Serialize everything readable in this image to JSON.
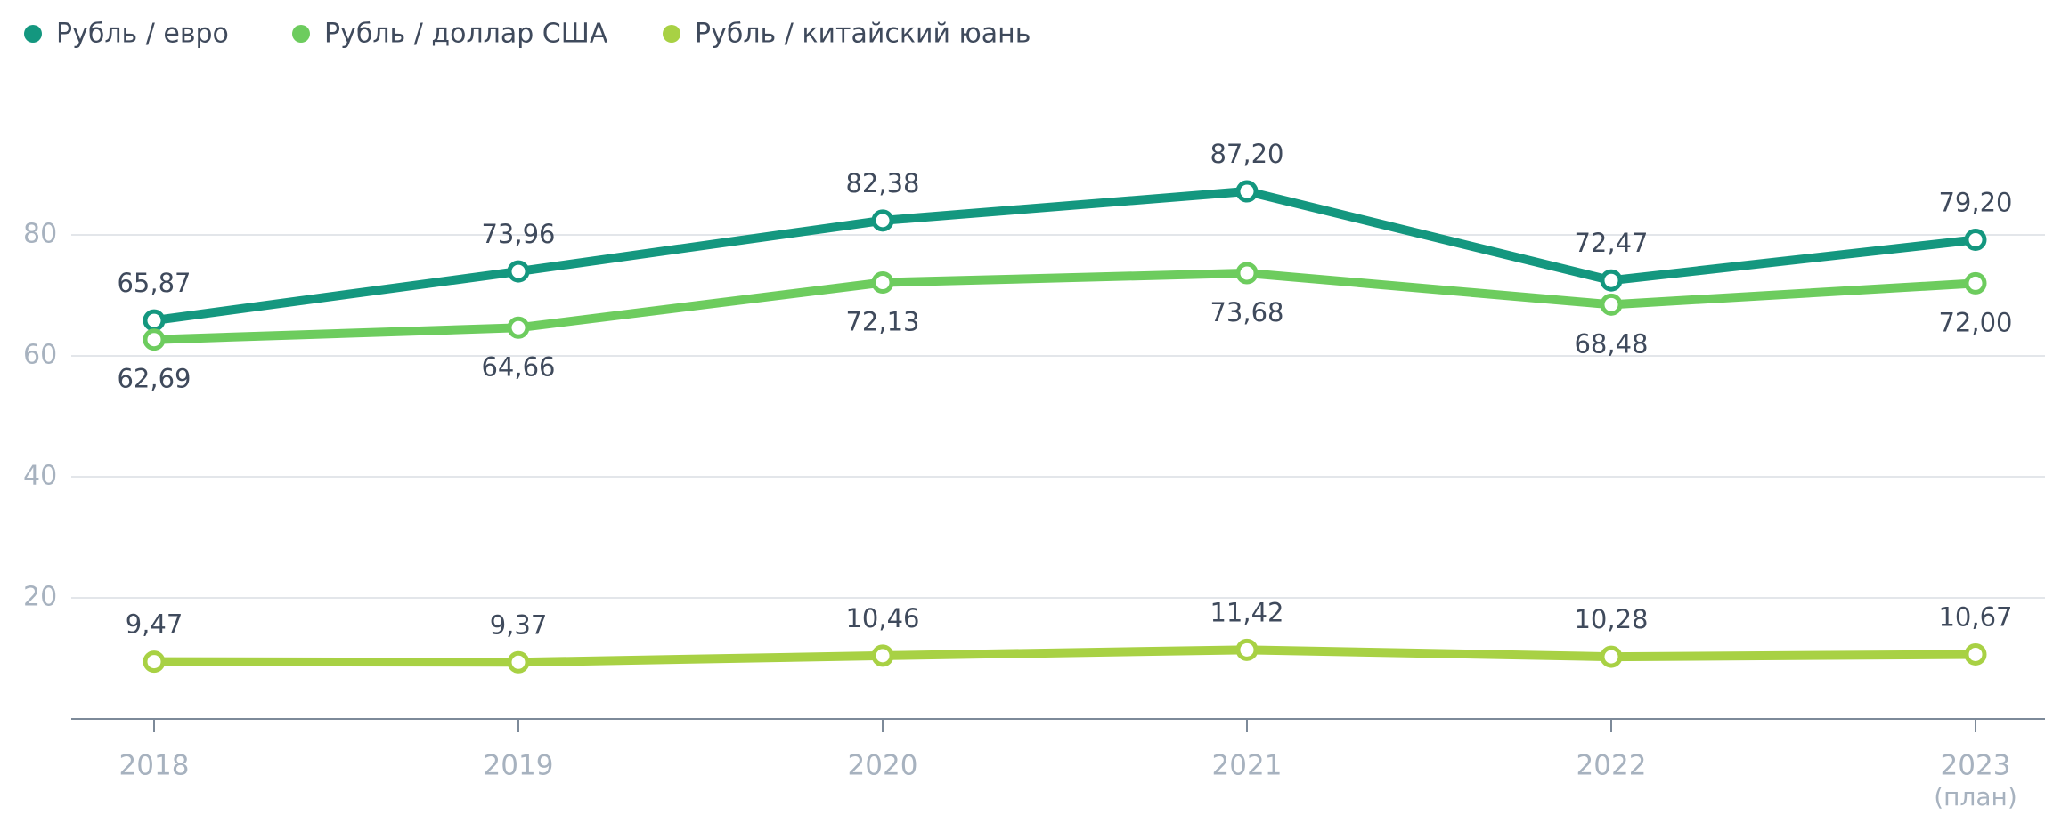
{
  "chart_data": {
    "type": "line",
    "categories": [
      "2018",
      "2019",
      "2020",
      "2021",
      "2022",
      "2023"
    ],
    "annotations": [
      {
        "text": "(план)"
      }
    ],
    "series": [
      {
        "name": "Рубль / евро",
        "color": "#14977f",
        "values": [
          65.87,
          73.96,
          82.38,
          87.2,
          72.47,
          79.2
        ],
        "value_labels": [
          "65,87",
          "73,96",
          "82,38",
          "87,20",
          "72,47",
          "79,20"
        ],
        "label_position": "above"
      },
      {
        "name": "Рубль / доллар США",
        "color": "#6dcc5e",
        "values": [
          62.69,
          64.66,
          72.13,
          73.68,
          68.48,
          72.0
        ],
        "value_labels": [
          "62,69",
          "64,66",
          "72,13",
          "73,68",
          "68,48",
          "72,00"
        ],
        "label_position": "below"
      },
      {
        "name": "Рубль / китайский юань",
        "color": "#a8d144",
        "values": [
          9.47,
          9.37,
          10.46,
          11.42,
          10.28,
          10.67
        ],
        "value_labels": [
          "9,47",
          "9,37",
          "10,46",
          "11,42",
          "10,28",
          "10,67"
        ],
        "label_position": "above"
      }
    ],
    "ylim": [
      0,
      100
    ],
    "yticks": [
      20,
      40,
      60,
      80
    ],
    "grid": true,
    "legend": "top-left"
  }
}
